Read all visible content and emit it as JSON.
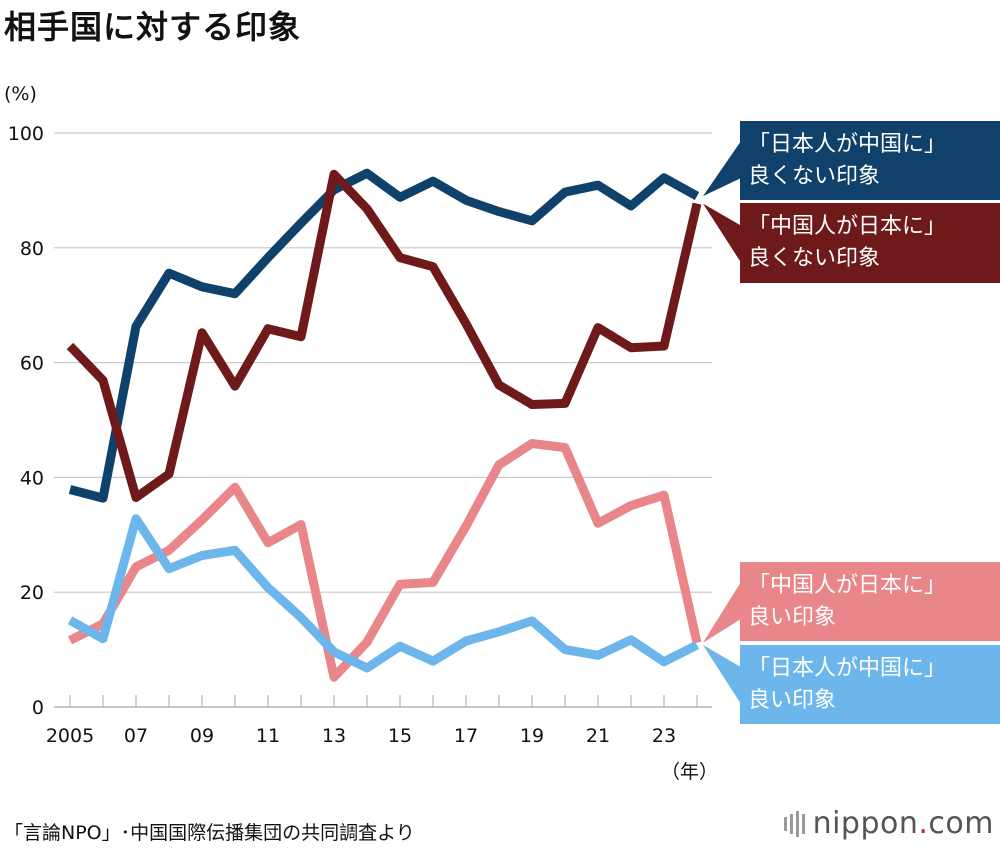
{
  "title": "相手国に対する印象",
  "source": "「言論NPO」･中国国際伝播集団の共同調査より",
  "logo": {
    "name": "nippon",
    "dot": ".",
    "tld": "com"
  },
  "chart_data": {
    "type": "line",
    "title": "相手国に対する印象",
    "ylabel": "(%)",
    "xlabel": "（年）",
    "ylim": [
      0,
      100
    ],
    "yticks": [
      0,
      20,
      40,
      60,
      80,
      100
    ],
    "xticks": [
      {
        "year": 2005,
        "label": "2005"
      },
      {
        "year": 2007,
        "label": "07"
      },
      {
        "year": 2009,
        "label": "09"
      },
      {
        "year": 2011,
        "label": "11"
      },
      {
        "year": 2013,
        "label": "13"
      },
      {
        "year": 2015,
        "label": "15"
      },
      {
        "year": 2017,
        "label": "17"
      },
      {
        "year": 2019,
        "label": "19"
      },
      {
        "year": 2021,
        "label": "21"
      },
      {
        "year": 2023,
        "label": "23"
      }
    ],
    "x": [
      2005,
      2006,
      2007,
      2008,
      2009,
      2010,
      2011,
      2012,
      2013,
      2014,
      2015,
      2016,
      2017,
      2018,
      2019,
      2020,
      2021,
      2022,
      2023,
      2024
    ],
    "grid": true,
    "legend": "right",
    "series": [
      {
        "name": "「日本人が中国に」良くない印象",
        "label_lines": [
          "「日本人が中国に」",
          "良くない印象"
        ],
        "color": "#0f416b",
        "values": [
          37.9,
          36.4,
          66.3,
          75.6,
          73.2,
          72.0,
          78.3,
          84.3,
          90.1,
          93.0,
          88.8,
          91.6,
          88.3,
          86.3,
          84.7,
          89.7,
          90.9,
          87.3,
          92.2,
          89.0
        ]
      },
      {
        "name": "「中国人が日本に」良くない印象",
        "label_lines": [
          "「中国人が日本に」",
          "良くない印象"
        ],
        "color": "#6e1a1a",
        "values": [
          62.9,
          56.9,
          36.5,
          40.6,
          65.2,
          55.9,
          65.9,
          64.5,
          92.8,
          86.8,
          78.3,
          76.7,
          66.8,
          56.1,
          52.7,
          52.9,
          66.1,
          62.6,
          62.9,
          87.7
        ]
      },
      {
        "name": "「中国人が日本に」良い印象",
        "label_lines": [
          "「中国人が日本に」",
          "良い印象"
        ],
        "color": "#e8868a",
        "values": [
          11.6,
          14.5,
          24.4,
          27.3,
          32.6,
          38.3,
          28.6,
          31.8,
          5.2,
          11.3,
          21.4,
          21.7,
          31.5,
          42.2,
          45.9,
          45.2,
          32.0,
          35.1,
          36.9,
          11.2
        ]
      },
      {
        "name": "「日本人が中国に」良い印象",
        "label_lines": [
          "「日本人が中国に」",
          "良い印象"
        ],
        "color": "#6db6ec",
        "values": [
          15.1,
          11.9,
          32.8,
          24.1,
          26.4,
          27.3,
          20.8,
          15.6,
          9.6,
          6.8,
          10.6,
          8.0,
          11.5,
          13.1,
          15.0,
          10.0,
          9.0,
          11.7,
          7.9,
          10.8
        ]
      }
    ]
  }
}
